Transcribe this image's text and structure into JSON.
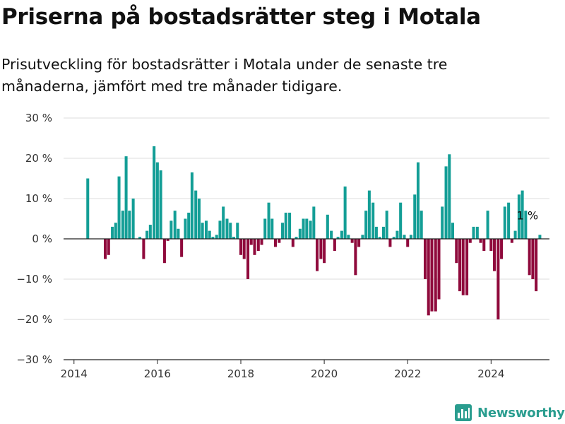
{
  "title": "Priserna på bostadsrätter steg i Motala",
  "subtitle": "Prisutveckling för bostadsrätter i Motala under de senaste tre månaderna, jämfört med tre månader tidigare.",
  "brand": {
    "name": "Newsworthy",
    "logo_icon": "bar-chart-icon",
    "color": "#2a9d8f"
  },
  "chart_data": {
    "type": "bar",
    "title": "",
    "xlabel": "",
    "ylabel": "",
    "ylim": [
      -30,
      30
    ],
    "y_ticks": [
      -30,
      -20,
      -10,
      0,
      10,
      20,
      30
    ],
    "y_tick_labels": [
      "−30 %",
      "−20 %",
      "−10 %",
      "0 %",
      "10 %",
      "20 %",
      "30 %"
    ],
    "x_range": [
      2013.75,
      2025.4
    ],
    "x_ticks": [
      2014,
      2016,
      2018,
      2020,
      2022,
      2024
    ],
    "x_tick_labels": [
      "2014",
      "2016",
      "2018",
      "2020",
      "2022",
      "2024"
    ],
    "grid": true,
    "positive_color": "#139e96",
    "negative_color": "#8f0a3c",
    "annotation": {
      "text": "1 %",
      "x": 2024.92,
      "y": 1
    },
    "points": [
      {
        "x": 2014.33,
        "y": 15
      },
      {
        "x": 2014.75,
        "y": -5
      },
      {
        "x": 2014.83,
        "y": -4
      },
      {
        "x": 2014.92,
        "y": 3
      },
      {
        "x": 2015.0,
        "y": 4
      },
      {
        "x": 2015.08,
        "y": 15.5
      },
      {
        "x": 2015.17,
        "y": 7
      },
      {
        "x": 2015.25,
        "y": 20.5
      },
      {
        "x": 2015.33,
        "y": 7
      },
      {
        "x": 2015.42,
        "y": 10
      },
      {
        "x": 2015.58,
        "y": 0.5
      },
      {
        "x": 2015.67,
        "y": -5
      },
      {
        "x": 2015.75,
        "y": 2
      },
      {
        "x": 2015.83,
        "y": 3.5
      },
      {
        "x": 2015.92,
        "y": 23
      },
      {
        "x": 2016.0,
        "y": 19
      },
      {
        "x": 2016.08,
        "y": 17
      },
      {
        "x": 2016.17,
        "y": -6
      },
      {
        "x": 2016.25,
        "y": -0.5
      },
      {
        "x": 2016.33,
        "y": 4.5
      },
      {
        "x": 2016.42,
        "y": 7
      },
      {
        "x": 2016.5,
        "y": 2.5
      },
      {
        "x": 2016.58,
        "y": -4.5
      },
      {
        "x": 2016.67,
        "y": 5
      },
      {
        "x": 2016.75,
        "y": 6.5
      },
      {
        "x": 2016.83,
        "y": 16.5
      },
      {
        "x": 2016.92,
        "y": 12
      },
      {
        "x": 2017.0,
        "y": 10
      },
      {
        "x": 2017.08,
        "y": 4
      },
      {
        "x": 2017.17,
        "y": 4.5
      },
      {
        "x": 2017.25,
        "y": 2
      },
      {
        "x": 2017.33,
        "y": 0.5
      },
      {
        "x": 2017.42,
        "y": 1
      },
      {
        "x": 2017.5,
        "y": 4.5
      },
      {
        "x": 2017.58,
        "y": 8
      },
      {
        "x": 2017.67,
        "y": 5
      },
      {
        "x": 2017.75,
        "y": 4
      },
      {
        "x": 2017.83,
        "y": 0.5
      },
      {
        "x": 2017.92,
        "y": 4
      },
      {
        "x": 2018.0,
        "y": -4
      },
      {
        "x": 2018.08,
        "y": -5
      },
      {
        "x": 2018.17,
        "y": -10
      },
      {
        "x": 2018.25,
        "y": -1.5
      },
      {
        "x": 2018.33,
        "y": -4
      },
      {
        "x": 2018.42,
        "y": -3
      },
      {
        "x": 2018.5,
        "y": -1.5
      },
      {
        "x": 2018.58,
        "y": 5
      },
      {
        "x": 2018.67,
        "y": 9
      },
      {
        "x": 2018.75,
        "y": 5
      },
      {
        "x": 2018.83,
        "y": -2
      },
      {
        "x": 2018.92,
        "y": -1
      },
      {
        "x": 2019.0,
        "y": 4
      },
      {
        "x": 2019.08,
        "y": 6.5
      },
      {
        "x": 2019.17,
        "y": 6.5
      },
      {
        "x": 2019.25,
        "y": -2
      },
      {
        "x": 2019.33,
        "y": 0.5
      },
      {
        "x": 2019.42,
        "y": 2.5
      },
      {
        "x": 2019.5,
        "y": 5
      },
      {
        "x": 2019.58,
        "y": 5
      },
      {
        "x": 2019.67,
        "y": 4.5
      },
      {
        "x": 2019.75,
        "y": 8
      },
      {
        "x": 2019.83,
        "y": -8
      },
      {
        "x": 2019.92,
        "y": -5
      },
      {
        "x": 2020.0,
        "y": -6
      },
      {
        "x": 2020.08,
        "y": 6
      },
      {
        "x": 2020.17,
        "y": 2
      },
      {
        "x": 2020.25,
        "y": -3
      },
      {
        "x": 2020.33,
        "y": 0.5
      },
      {
        "x": 2020.42,
        "y": 2
      },
      {
        "x": 2020.5,
        "y": 13
      },
      {
        "x": 2020.58,
        "y": 1
      },
      {
        "x": 2020.67,
        "y": -1
      },
      {
        "x": 2020.75,
        "y": -9
      },
      {
        "x": 2020.83,
        "y": -2
      },
      {
        "x": 2020.92,
        "y": 1
      },
      {
        "x": 2021.0,
        "y": 7
      },
      {
        "x": 2021.08,
        "y": 12
      },
      {
        "x": 2021.17,
        "y": 9
      },
      {
        "x": 2021.25,
        "y": 3
      },
      {
        "x": 2021.33,
        "y": 0.5
      },
      {
        "x": 2021.42,
        "y": 3
      },
      {
        "x": 2021.5,
        "y": 7
      },
      {
        "x": 2021.58,
        "y": -2
      },
      {
        "x": 2021.67,
        "y": 0.5
      },
      {
        "x": 2021.75,
        "y": 2
      },
      {
        "x": 2021.83,
        "y": 9
      },
      {
        "x": 2021.92,
        "y": 1
      },
      {
        "x": 2022.0,
        "y": -2
      },
      {
        "x": 2022.08,
        "y": 1
      },
      {
        "x": 2022.17,
        "y": 11
      },
      {
        "x": 2022.25,
        "y": 19
      },
      {
        "x": 2022.33,
        "y": 7
      },
      {
        "x": 2022.42,
        "y": -10
      },
      {
        "x": 2022.5,
        "y": -19
      },
      {
        "x": 2022.58,
        "y": -18
      },
      {
        "x": 2022.67,
        "y": -18
      },
      {
        "x": 2022.75,
        "y": -15
      },
      {
        "x": 2022.83,
        "y": 8
      },
      {
        "x": 2022.92,
        "y": 18
      },
      {
        "x": 2023.0,
        "y": 21
      },
      {
        "x": 2023.08,
        "y": 4
      },
      {
        "x": 2023.17,
        "y": -6
      },
      {
        "x": 2023.25,
        "y": -13
      },
      {
        "x": 2023.33,
        "y": -14
      },
      {
        "x": 2023.42,
        "y": -14
      },
      {
        "x": 2023.5,
        "y": -1
      },
      {
        "x": 2023.58,
        "y": 3
      },
      {
        "x": 2023.67,
        "y": 3
      },
      {
        "x": 2023.75,
        "y": -1
      },
      {
        "x": 2023.83,
        "y": -3
      },
      {
        "x": 2023.92,
        "y": 7
      },
      {
        "x": 2024.0,
        "y": -3
      },
      {
        "x": 2024.08,
        "y": -8
      },
      {
        "x": 2024.17,
        "y": -20
      },
      {
        "x": 2024.25,
        "y": -5
      },
      {
        "x": 2024.33,
        "y": 8
      },
      {
        "x": 2024.42,
        "y": 9
      },
      {
        "x": 2024.5,
        "y": -1
      },
      {
        "x": 2024.58,
        "y": 2
      },
      {
        "x": 2024.67,
        "y": 11
      },
      {
        "x": 2024.75,
        "y": 12
      },
      {
        "x": 2024.83,
        "y": 7
      },
      {
        "x": 2024.92,
        "y": -9
      },
      {
        "x": 2025.0,
        "y": -10
      },
      {
        "x": 2025.08,
        "y": -13
      },
      {
        "x": 2025.17,
        "y": 1
      }
    ]
  }
}
